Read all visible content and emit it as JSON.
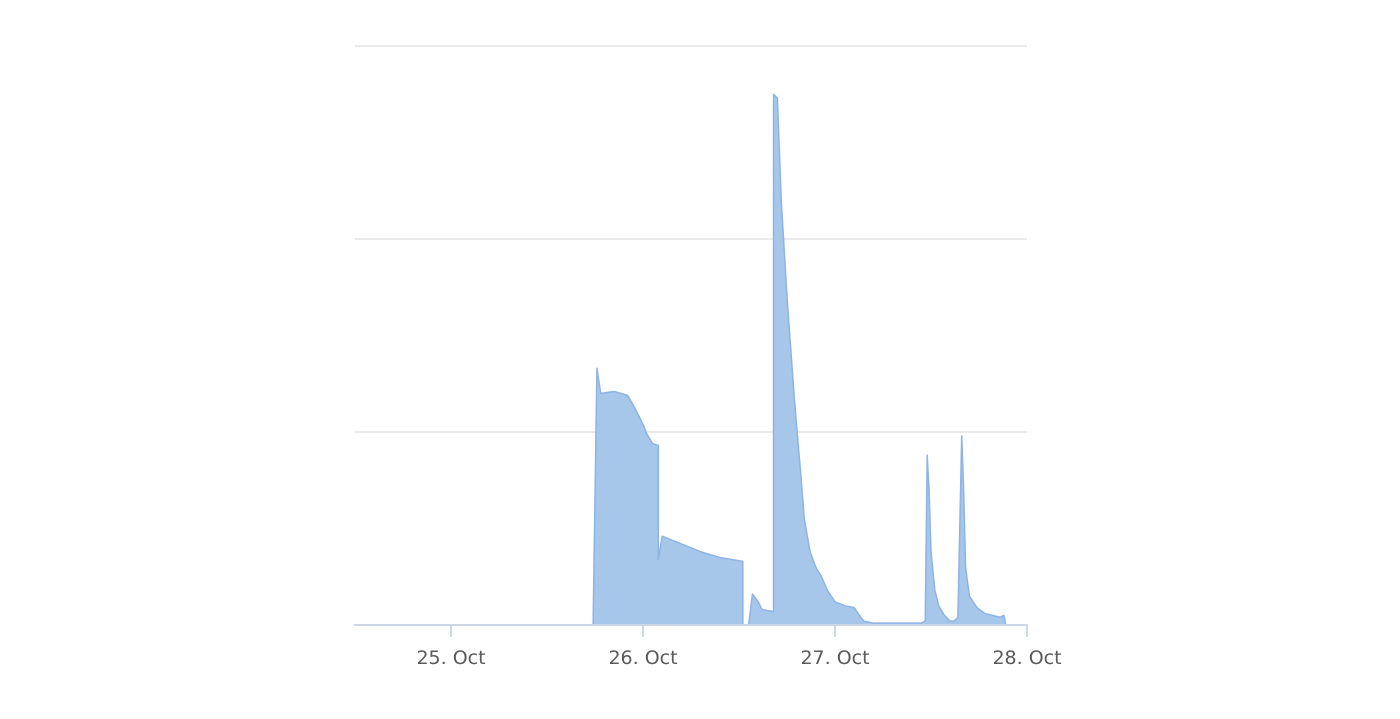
{
  "chart_data": {
    "type": "area",
    "title": "",
    "xlabel": "",
    "ylabel": "",
    "x_ticks": [
      {
        "value": 1,
        "label": "25. Oct"
      },
      {
        "value": 2,
        "label": "26. Oct"
      },
      {
        "value": 3,
        "label": "27. Oct"
      },
      {
        "value": 4,
        "label": "28. Oct"
      }
    ],
    "xlim": [
      0.5,
      4.0
    ],
    "ylim": [
      0,
      3
    ],
    "y_gridlines": [
      1,
      2,
      3
    ],
    "grid": "horizontal",
    "legend": "none",
    "series": [
      {
        "color": "#a6c6ea",
        "line_color": "#8eb4e4",
        "points": [
          [
            0.5,
            0.0
          ],
          [
            1.74,
            0.0
          ],
          [
            1.76,
            1.33
          ],
          [
            1.78,
            1.2
          ],
          [
            1.85,
            1.21
          ],
          [
            1.92,
            1.19
          ],
          [
            1.96,
            1.12
          ],
          [
            2.0,
            1.04
          ],
          [
            2.02,
            0.99
          ],
          [
            2.05,
            0.94
          ],
          [
            2.08,
            0.93
          ],
          [
            2.08,
            0.34
          ],
          [
            2.1,
            0.46
          ],
          [
            2.2,
            0.42
          ],
          [
            2.3,
            0.38
          ],
          [
            2.4,
            0.35
          ],
          [
            2.52,
            0.33
          ],
          [
            2.52,
            0.0
          ],
          [
            2.55,
            0.0
          ],
          [
            2.57,
            0.16
          ],
          [
            2.6,
            0.12
          ],
          [
            2.62,
            0.08
          ],
          [
            2.68,
            0.07
          ],
          [
            2.68,
            2.75
          ],
          [
            2.7,
            2.73
          ],
          [
            2.72,
            2.2
          ],
          [
            2.75,
            1.7
          ],
          [
            2.79,
            1.15
          ],
          [
            2.82,
            0.8
          ],
          [
            2.84,
            0.55
          ],
          [
            2.87,
            0.38
          ],
          [
            2.9,
            0.3
          ],
          [
            2.93,
            0.25
          ],
          [
            2.96,
            0.18
          ],
          [
            3.0,
            0.12
          ],
          [
            3.05,
            0.1
          ],
          [
            3.1,
            0.09
          ],
          [
            3.12,
            0.06
          ],
          [
            3.15,
            0.02
          ],
          [
            3.2,
            0.01
          ],
          [
            3.45,
            0.01
          ],
          [
            3.47,
            0.02
          ],
          [
            3.48,
            0.88
          ],
          [
            3.49,
            0.7
          ],
          [
            3.5,
            0.38
          ],
          [
            3.52,
            0.18
          ],
          [
            3.54,
            0.1
          ],
          [
            3.57,
            0.05
          ],
          [
            3.6,
            0.02
          ],
          [
            3.62,
            0.02
          ],
          [
            3.64,
            0.04
          ],
          [
            3.66,
            0.98
          ],
          [
            3.67,
            0.7
          ],
          [
            3.68,
            0.3
          ],
          [
            3.7,
            0.15
          ],
          [
            3.74,
            0.09
          ],
          [
            3.78,
            0.06
          ],
          [
            3.82,
            0.05
          ],
          [
            3.86,
            0.04
          ],
          [
            3.88,
            0.05
          ],
          [
            3.89,
            0.0
          ],
          [
            4.0,
            0.0
          ]
        ]
      }
    ]
  }
}
